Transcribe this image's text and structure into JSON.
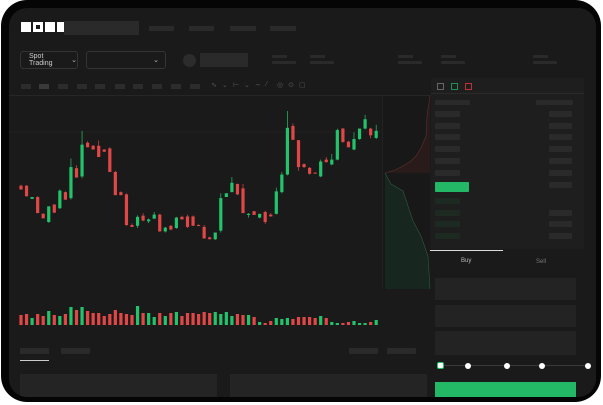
{
  "brand": {
    "logo": "OKX"
  },
  "toolbar": {
    "mode_label": "Spot Trading",
    "mode_icon": "chevron-down-icon",
    "pair_icon": "chevron-down-icon"
  },
  "order_form": {
    "tabs": [
      "Buy",
      "Sell"
    ],
    "active_tab": "Buy",
    "slider_value": 0
  },
  "colors": {
    "up": "#22c36b",
    "down": "#e04848",
    "background": "#1a1a1a"
  },
  "chart_data": {
    "type": "candlestick",
    "candles": [
      [
        185,
        188,
        175,
        175
      ],
      [
        185,
        187,
        156,
        157
      ],
      [
        150,
        155,
        150,
        155
      ],
      [
        155,
        157,
        112,
        112
      ],
      [
        110,
        112,
        98,
        98
      ],
      [
        88,
        130,
        86,
        130
      ],
      [
        135,
        135,
        113,
        113
      ],
      [
        125,
        175,
        123,
        172
      ],
      [
        168,
        170,
        147,
        148
      ],
      [
        152,
        258,
        148,
        235
      ],
      [
        232,
        240,
        207,
        207
      ],
      [
        210,
        332,
        205,
        295
      ],
      [
        300,
        304,
        288,
        288
      ],
      [
        292,
        294,
        282,
        282
      ],
      [
        292,
        306,
        262,
        262
      ],
      [
        282,
        283,
        276,
        276
      ],
      [
        285,
        288,
        222,
        222
      ],
      [
        222,
        225,
        160,
        160
      ],
      [
        168,
        170,
        160,
        160
      ],
      [
        162,
        165,
        78,
        80
      ],
      [
        80,
        84,
        75,
        75
      ],
      [
        78,
        106,
        72,
        102
      ],
      [
        105,
        112,
        90,
        92
      ],
      [
        90,
        97,
        85,
        95
      ],
      [
        97,
        115,
        97,
        108
      ],
      [
        108,
        110,
        62,
        63
      ],
      [
        63,
        75,
        60,
        73
      ],
      [
        78,
        80,
        66,
        68
      ],
      [
        72,
        102,
        70,
        100
      ],
      [
        102,
        105,
        95,
        95
      ],
      [
        103,
        108,
        72,
        75
      ],
      [
        103,
        106,
        78,
        78
      ],
      [
        80,
        82,
        78,
        78
      ],
      [
        75,
        80,
        44,
        44
      ],
      [
        47,
        49,
        42,
        42
      ],
      [
        42,
        60,
        40,
        60
      ],
      [
        65,
        165,
        60,
        152
      ],
      [
        155,
        165,
        155,
        165
      ],
      [
        168,
        208,
        168,
        193
      ],
      [
        190,
        190,
        160,
        162
      ],
      [
        178,
        190,
        112,
        112
      ],
      [
        107,
        112,
        100,
        110
      ],
      [
        117,
        117,
        107,
        107
      ],
      [
        100,
        110,
        98,
        110
      ],
      [
        115,
        118,
        83,
        88
      ],
      [
        108,
        112,
        103,
        103
      ],
      [
        110,
        180,
        108,
        170
      ],
      [
        168,
        222,
        165,
        215
      ],
      [
        215,
        385,
        213,
        340
      ],
      [
        345,
        352,
        308,
        308
      ],
      [
        307,
        307,
        225,
        235
      ],
      [
        243,
        245,
        233,
        235
      ],
      [
        233,
        235,
        215,
        217
      ],
      [
        220,
        222,
        218,
        218
      ],
      [
        210,
        255,
        208,
        250
      ],
      [
        255,
        262,
        248,
        248
      ],
      [
        242,
        270,
        240,
        255
      ],
      [
        255,
        338,
        253,
        334
      ],
      [
        338,
        340,
        300,
        302
      ],
      [
        303,
        305,
        288,
        288
      ],
      [
        282,
        328,
        280,
        310
      ],
      [
        310,
        338,
        308,
        338
      ],
      [
        338,
        375,
        336,
        363
      ],
      [
        338,
        340,
        312,
        320
      ],
      [
        313,
        348,
        310,
        332
      ]
    ],
    "volumes": [
      10,
      11,
      7,
      11,
      9,
      14,
      10,
      9,
      11,
      18,
      15,
      18,
      14,
      12,
      12,
      9,
      11,
      15,
      12,
      11,
      10,
      19,
      12,
      12,
      8,
      12,
      9,
      12,
      13,
      9,
      12,
      12,
      11,
      13,
      12,
      13,
      11,
      13,
      9,
      11,
      10,
      10,
      8,
      3,
      2,
      4,
      7,
      6,
      7,
      6,
      8,
      8,
      8,
      7,
      9,
      7,
      3,
      2,
      2,
      3,
      4,
      2,
      2,
      3,
      5
    ],
    "grid": false
  }
}
